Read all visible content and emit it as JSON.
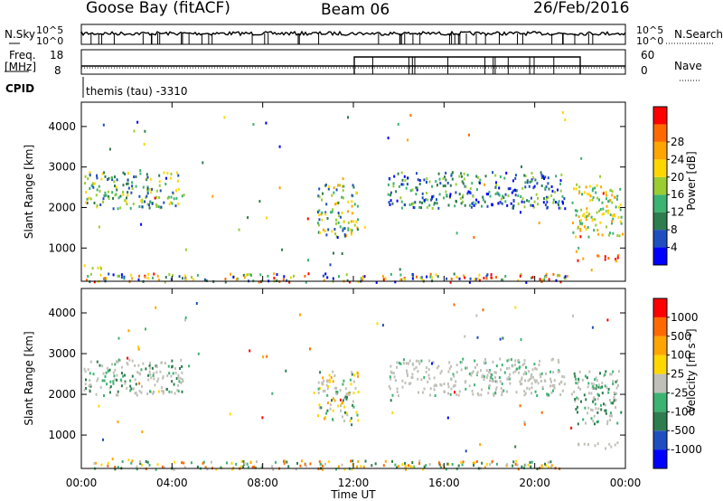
{
  "header": {
    "station": "Goose Bay (fitACF)",
    "beam": "Beam 06",
    "date": "26/Feb/2016"
  },
  "aux_panels": {
    "nsky_label": "N.Sky",
    "nsky_ticks": [
      "10^5",
      "10^0"
    ],
    "nsearch_label": "N.Search",
    "nsearch_ticks": [
      "10^5",
      "10^0"
    ],
    "freq_label": "Freq.",
    "freq_unit": "[MHz]",
    "freq_ticks": [
      "18",
      "8"
    ],
    "nave_label": "Nave",
    "nave_ticks": [
      "60",
      "0"
    ],
    "cpid_label": "CPID",
    "cpid_value": "themis (tau) -3310"
  },
  "chart_data": [
    {
      "type": "heatmap",
      "name": "power",
      "ylabel": "Slant Range [km]",
      "xlabel": "Time UT",
      "x_ticks": [
        "00:00",
        "04:00",
        "08:00",
        "12:00",
        "16:00",
        "20:00",
        "00:00"
      ],
      "xlim_hours": [
        0,
        24
      ],
      "y_ticks": [
        1000,
        2000,
        3000,
        4000
      ],
      "ylim_km": [
        180,
        4600
      ],
      "colorbar": {
        "label": "Power [dB]",
        "ticks": [
          "4",
          "8",
          "12",
          "16",
          "20",
          "24",
          "28"
        ],
        "colors": [
          "#0000ff",
          "#1f4fbf",
          "#2e7d4f",
          "#3cb371",
          "#9acd32",
          "#ffd700",
          "#ffa500",
          "#ff6a00",
          "#ff0000"
        ]
      },
      "regions": [
        {
          "t": [
            0.1,
            4.5
          ],
          "r": [
            2000,
            2900
          ],
          "c": [
            1,
            2,
            3,
            4,
            5
          ]
        },
        {
          "t": [
            0.1,
            1.0
          ],
          "r": [
            500,
            650
          ],
          "c": [
            3,
            4,
            5
          ]
        },
        {
          "t": [
            10.4,
            12.2
          ],
          "r": [
            1300,
            2600
          ],
          "c": [
            1,
            2,
            3,
            4,
            5,
            6
          ]
        },
        {
          "t": [
            13.5,
            21.3
          ],
          "r": [
            2000,
            2900
          ],
          "c": [
            0,
            1,
            2,
            3,
            4
          ]
        },
        {
          "t": [
            21.6,
            23.8
          ],
          "r": [
            1300,
            2600
          ],
          "c": [
            3,
            4,
            5,
            6
          ]
        },
        {
          "t": [
            21.8,
            23.7
          ],
          "r": [
            700,
            850
          ],
          "c": [
            6,
            7,
            8
          ]
        },
        {
          "t": [
            0.2,
            21.5
          ],
          "r": [
            180,
            400
          ],
          "c": [
            0,
            1,
            2,
            3,
            4,
            5,
            6,
            7,
            8
          ]
        }
      ]
    },
    {
      "type": "heatmap",
      "name": "velocity",
      "ylabel": "Slant Range [km]",
      "xlabel": "Time UT",
      "x_ticks": [
        "00:00",
        "04:00",
        "08:00",
        "12:00",
        "16:00",
        "20:00",
        "00:00"
      ],
      "xlim_hours": [
        0,
        24
      ],
      "y_ticks": [
        1000,
        2000,
        3000,
        4000
      ],
      "ylim_km": [
        180,
        4600
      ],
      "colorbar": {
        "label": "Velocity [m s⁻¹]",
        "ticks": [
          "1000",
          "500",
          "100",
          "25",
          "-25",
          "-100",
          "-500",
          "-1000"
        ],
        "colors": [
          "#0000ff",
          "#1f4fbf",
          "#2e7d4f",
          "#3cb371",
          "#c0c0b8",
          "#ffd700",
          "#ffa500",
          "#ff6a00",
          "#ff0000"
        ]
      },
      "ground_scatter_color": "#c0c0b8",
      "regions": [
        {
          "t": [
            0.1,
            4.5
          ],
          "r": [
            2000,
            2900
          ],
          "c": [
            4,
            4,
            4,
            3,
            2
          ]
        },
        {
          "t": [
            10.4,
            12.2
          ],
          "r": [
            1300,
            2600
          ],
          "c": [
            4,
            3,
            2,
            5,
            6,
            4
          ]
        },
        {
          "t": [
            13.5,
            21.3
          ],
          "r": [
            2000,
            2900
          ],
          "c": [
            4,
            4,
            4,
            4,
            3
          ]
        },
        {
          "t": [
            21.6,
            23.8
          ],
          "r": [
            1300,
            2600
          ],
          "c": [
            4,
            3,
            2,
            4
          ]
        },
        {
          "t": [
            21.8,
            23.7
          ],
          "r": [
            700,
            850
          ],
          "c": [
            4,
            4,
            4
          ]
        },
        {
          "t": [
            0.2,
            21.5
          ],
          "r": [
            180,
            400
          ],
          "c": [
            4,
            5,
            6,
            2,
            3,
            7
          ]
        }
      ]
    }
  ]
}
